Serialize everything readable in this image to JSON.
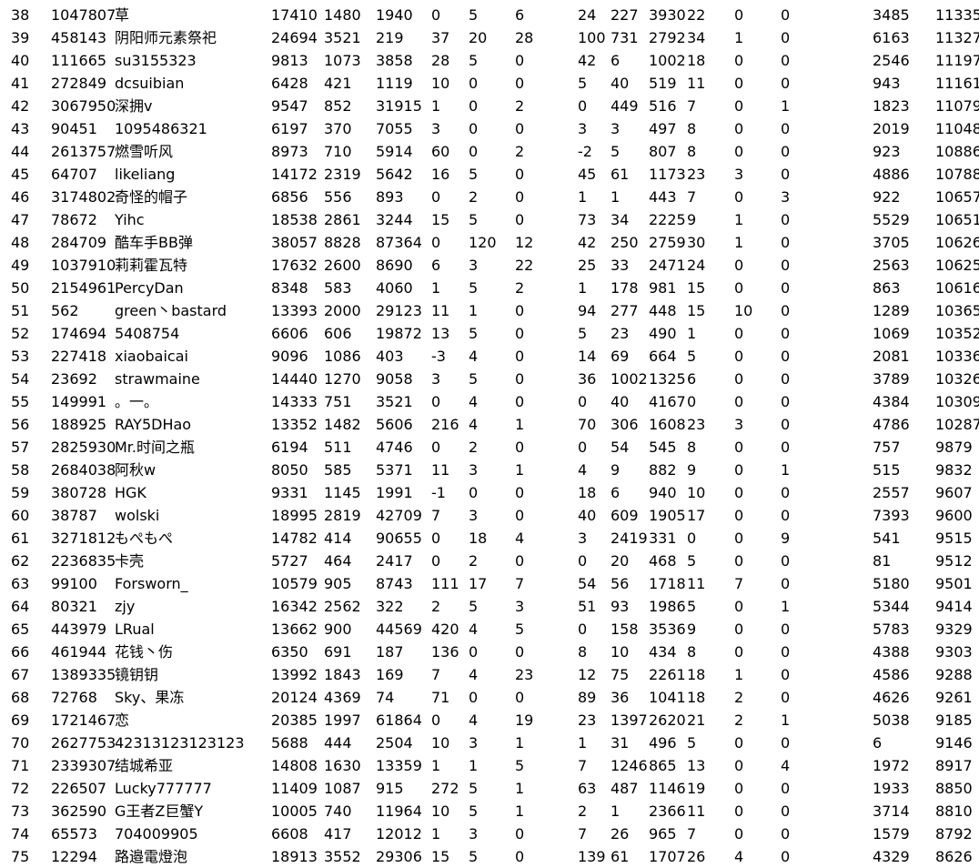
{
  "rows": [
    [
      "38",
      "1047807",
      "草",
      "17410",
      "1480",
      "1940",
      "0",
      "5",
      "6",
      "24",
      "227",
      "3930",
      "22",
      "0",
      "0",
      "3485",
      "11335"
    ],
    [
      "39",
      "458143",
      "阴阳师元素祭祀",
      "24694",
      "3521",
      "219",
      "37",
      "20",
      "28",
      "100",
      "731",
      "2792",
      "34",
      "1",
      "0",
      "6163",
      "11327"
    ],
    [
      "40",
      "111665",
      "su3155323",
      "9813",
      "1073",
      "3858",
      "28",
      "5",
      "0",
      "42",
      "6",
      "1002",
      "18",
      "0",
      "0",
      "2546",
      "11197"
    ],
    [
      "41",
      "272849",
      "dcsuibian",
      "6428",
      "421",
      "1119",
      "10",
      "0",
      "0",
      "5",
      "40",
      "519",
      "11",
      "0",
      "0",
      "943",
      "11161"
    ],
    [
      "42",
      "3067950",
      "深拥v",
      "9547",
      "852",
      "31915",
      "1",
      "0",
      "2",
      "0",
      "449",
      "516",
      "7",
      "0",
      "1",
      "1823",
      "11079"
    ],
    [
      "43",
      "90451",
      "1095486321",
      "6197",
      "370",
      "7055",
      "3",
      "0",
      "0",
      "3",
      "3",
      "497",
      "8",
      "0",
      "0",
      "2019",
      "11048"
    ],
    [
      "44",
      "2613757",
      "燃雪听风",
      "8973",
      "710",
      "5914",
      "60",
      "0",
      "2",
      "-2",
      "5",
      "807",
      "8",
      "0",
      "0",
      "923",
      "10886"
    ],
    [
      "45",
      "64707",
      "likeliang",
      "14172",
      "2319",
      "5642",
      "16",
      "5",
      "0",
      "45",
      "61",
      "1173",
      "23",
      "3",
      "0",
      "4886",
      "10788"
    ],
    [
      "46",
      "3174802",
      "奇怪的帽子",
      "6856",
      "556",
      "893",
      "0",
      "2",
      "0",
      "1",
      "1",
      "443",
      "7",
      "0",
      "3",
      "922",
      "10657"
    ],
    [
      "47",
      "78672",
      "Yihc",
      "18538",
      "2861",
      "3244",
      "15",
      "5",
      "0",
      "73",
      "34",
      "2225",
      "9",
      "1",
      "0",
      "5529",
      "10651"
    ],
    [
      "48",
      "284709",
      "酷车手BB弹",
      "38057",
      "8828",
      "87364",
      "0",
      "120",
      "12",
      "42",
      "250",
      "2759",
      "30",
      "1",
      "0",
      "3705",
      "10626"
    ],
    [
      "49",
      "1037910",
      "莉莉霍瓦特",
      "17632",
      "2600",
      "8690",
      "6",
      "3",
      "22",
      "25",
      "33",
      "2471",
      "24",
      "0",
      "0",
      "2563",
      "10625"
    ],
    [
      "50",
      "2154961",
      "PercyDan",
      "8348",
      "583",
      "4060",
      "1",
      "5",
      "2",
      "1",
      "178",
      "981",
      "15",
      "0",
      "0",
      "863",
      "10616"
    ],
    [
      "51",
      "562",
      "green丶bastard",
      "13393",
      "2000",
      "29123",
      "11",
      "1",
      "0",
      "94",
      "277",
      "448",
      "15",
      "10",
      "0",
      "1289",
      "10365"
    ],
    [
      "52",
      "174694",
      "5408754",
      "6606",
      "606",
      "19872",
      "13",
      "5",
      "0",
      "5",
      "23",
      "490",
      "1",
      "0",
      "0",
      "1069",
      "10352"
    ],
    [
      "53",
      "227418",
      "xiaobaicai",
      "9096",
      "1086",
      "403",
      "-3",
      "4",
      "0",
      "14",
      "69",
      "664",
      "5",
      "0",
      "0",
      "2081",
      "10336"
    ],
    [
      "54",
      "23692",
      "strawmaine",
      "14440",
      "1270",
      "9058",
      "3",
      "5",
      "0",
      "36",
      "1002",
      "1325",
      "6",
      "0",
      "0",
      "3789",
      "10326"
    ],
    [
      "55",
      "149991",
      "。一。",
      "14333",
      "751",
      "3521",
      "0",
      "4",
      "0",
      "0",
      "40",
      "4167",
      "0",
      "0",
      "0",
      "4384",
      "10309"
    ],
    [
      "56",
      "188925",
      "RAY5DHao",
      "13352",
      "1482",
      "5606",
      "216",
      "4",
      "1",
      "70",
      "306",
      "1608",
      "23",
      "3",
      "0",
      "4786",
      "10287"
    ],
    [
      "57",
      "2825930",
      "Mr.时间之瓶",
      "6194",
      "511",
      "4746",
      "0",
      "2",
      "0",
      "0",
      "54",
      "545",
      "8",
      "0",
      "0",
      "757",
      "9879"
    ],
    [
      "58",
      "2684038",
      "阿秋w",
      "8050",
      "585",
      "5371",
      "11",
      "3",
      "1",
      "4",
      "9",
      "882",
      "9",
      "0",
      "1",
      "515",
      "9832"
    ],
    [
      "59",
      "380728",
      "HGK",
      "9331",
      "1145",
      "1991",
      "-1",
      "0",
      "0",
      "18",
      "6",
      "940",
      "10",
      "0",
      "0",
      "2557",
      "9607"
    ],
    [
      "60",
      "38787",
      "wolski",
      "18995",
      "2819",
      "42709",
      "7",
      "3",
      "0",
      "40",
      "609",
      "1905",
      "17",
      "0",
      "0",
      "7393",
      "9600"
    ],
    [
      "61",
      "3271812",
      "もぺもぺ",
      "14782",
      "414",
      "90655",
      "0",
      "18",
      "4",
      "3",
      "2419",
      "331",
      "0",
      "0",
      "9",
      "541",
      "9515"
    ],
    [
      "62",
      "2236835",
      "卡壳",
      "5727",
      "464",
      "2417",
      "0",
      "2",
      "0",
      "0",
      "20",
      "468",
      "5",
      "0",
      "0",
      "81",
      "9512"
    ],
    [
      "63",
      "99100",
      "Forsworn_",
      "10579",
      "905",
      "8743",
      "111",
      "17",
      "7",
      "54",
      "56",
      "1718",
      "11",
      "7",
      "0",
      "5180",
      "9501"
    ],
    [
      "64",
      "80321",
      "zjy",
      "16342",
      "2562",
      "322",
      "2",
      "5",
      "3",
      "51",
      "93",
      "1986",
      "5",
      "0",
      "1",
      "5344",
      "9414"
    ],
    [
      "65",
      "443979",
      "LRual",
      "13662",
      "900",
      "44569",
      "420",
      "4",
      "5",
      "0",
      "158",
      "3536",
      "9",
      "0",
      "0",
      "5783",
      "9329"
    ],
    [
      "66",
      "461944",
      "花钱丶伤",
      "6350",
      "691",
      "187",
      "136",
      "0",
      "0",
      "8",
      "10",
      "434",
      "8",
      "0",
      "0",
      "4388",
      "9303"
    ],
    [
      "67",
      "1389335",
      "镜钥钥",
      "13992",
      "1843",
      "169",
      "7",
      "4",
      "23",
      "12",
      "75",
      "2261",
      "18",
      "1",
      "0",
      "4586",
      "9288"
    ],
    [
      "68",
      "72768",
      "Sky、果冻",
      "20124",
      "4369",
      "74",
      "71",
      "0",
      "0",
      "89",
      "36",
      "1041",
      "18",
      "2",
      "0",
      "4626",
      "9261"
    ],
    [
      "69",
      "1721467",
      "恋",
      "20385",
      "1997",
      "61864",
      "0",
      "4",
      "19",
      "23",
      "1397",
      "2620",
      "21",
      "2",
      "1",
      "5038",
      "9185"
    ],
    [
      "70",
      "2627753",
      "42313123123123",
      "5688",
      "444",
      "2504",
      "10",
      "3",
      "1",
      "1",
      "31",
      "496",
      "5",
      "0",
      "0",
      "6",
      "9146"
    ],
    [
      "71",
      "2339307",
      "结城希亚",
      "14808",
      "1630",
      "13359",
      "1",
      "1",
      "5",
      "7",
      "1246",
      "865",
      "13",
      "0",
      "4",
      "1972",
      "8917"
    ],
    [
      "72",
      "226507",
      "Lucky777777",
      "11409",
      "1087",
      "915",
      "272",
      "5",
      "1",
      "63",
      "487",
      "1146",
      "19",
      "0",
      "0",
      "1933",
      "8850"
    ],
    [
      "73",
      "362590",
      "G王者Z巨蟹Y",
      "10005",
      "740",
      "11964",
      "10",
      "5",
      "1",
      "2",
      "1",
      "2366",
      "11",
      "0",
      "0",
      "3714",
      "8810"
    ],
    [
      "74",
      "65573",
      "704009905",
      "6608",
      "417",
      "12012",
      "1",
      "3",
      "0",
      "7",
      "26",
      "965",
      "7",
      "0",
      "0",
      "1579",
      "8792"
    ],
    [
      "75",
      "12294",
      "路邉電燈泡",
      "18913",
      "3552",
      "29306",
      "15",
      "5",
      "0",
      "139",
      "61",
      "1707",
      "26",
      "4",
      "0",
      "4329",
      "8626"
    ]
  ]
}
